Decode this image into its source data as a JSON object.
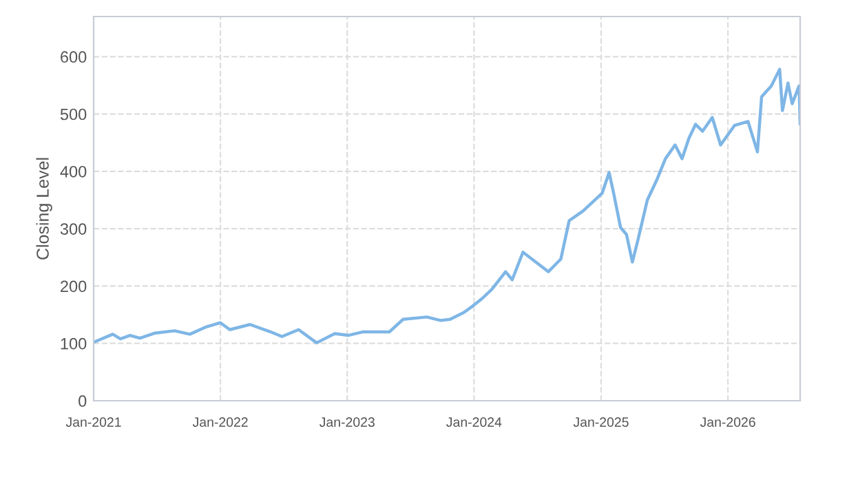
{
  "chart_data": {
    "type": "line",
    "ylabel": "Closing Level",
    "x": [
      "2021-01-01",
      "2021-02-25",
      "2021-03-19",
      "2021-04-16",
      "2021-05-14",
      "2021-06-27",
      "2021-08-22",
      "2021-10-05",
      "2021-11-22",
      "2022-01-01",
      "2022-01-28",
      "2022-03-27",
      "2022-05-26",
      "2022-06-27",
      "2022-08-14",
      "2022-10-05",
      "2022-11-26",
      "2023-01-04",
      "2023-02-14",
      "2023-05-02",
      "2023-06-11",
      "2023-08-18",
      "2023-09-27",
      "2023-10-24",
      "2023-12-03",
      "2023-12-28",
      "2024-01-24",
      "2024-02-21",
      "2024-04-01",
      "2024-04-20",
      "2024-05-21",
      "2024-08-02",
      "2024-09-07",
      "2024-10-01",
      "2024-11-10",
      "2025-01-04",
      "2025-01-24",
      "2025-02-06",
      "2025-02-26",
      "2025-03-15",
      "2025-04-01",
      "2025-04-16",
      "2025-05-14",
      "2025-06-11",
      "2025-07-05",
      "2025-08-02",
      "2025-08-22",
      "2025-09-11",
      "2025-09-30",
      "2025-10-20",
      "2025-11-17",
      "2025-12-11",
      "2026-01-20",
      "2026-02-28",
      "2026-03-27",
      "2026-04-08",
      "2026-05-06",
      "2026-05-30",
      "2026-06-07",
      "2026-06-23",
      "2026-07-05",
      "2026-07-25",
      "2026-07-28"
    ],
    "series": [
      {
        "color": "#7eb6e6",
        "values": [
          102,
          116,
          108,
          114,
          109,
          118,
          122,
          116,
          129,
          136,
          124,
          133,
          120,
          112,
          124,
          101,
          117,
          114,
          120,
          120,
          142,
          146,
          140,
          142,
          154,
          165,
          178,
          194,
          225,
          211,
          259,
          225,
          247,
          314,
          331,
          362,
          398,
          362,
          302,
          290,
          242,
          278,
          350,
          386,
          422,
          446,
          422,
          458,
          482,
          470,
          494,
          446,
          480,
          487,
          434,
          530,
          549,
          578,
          506,
          554,
          518,
          549,
          482
        ]
      }
    ],
    "xlim": [
      "2021-01-01",
      "2026-07-28"
    ],
    "xticks": [
      {
        "value": "2021-01-01",
        "label": "Jan-2021"
      },
      {
        "value": "2022-01-01",
        "label": "Jan-2022"
      },
      {
        "value": "2023-01-01",
        "label": "Jan-2023"
      },
      {
        "value": "2024-01-01",
        "label": "Jan-2024"
      },
      {
        "value": "2025-01-01",
        "label": "Jan-2025"
      },
      {
        "value": "2026-01-01",
        "label": "Jan-2026"
      }
    ],
    "ylim": [
      0,
      670
    ],
    "yticks": [
      0,
      100,
      200,
      300,
      400,
      500,
      600
    ],
    "grid": true,
    "line_style": "solid",
    "marker": "none"
  }
}
